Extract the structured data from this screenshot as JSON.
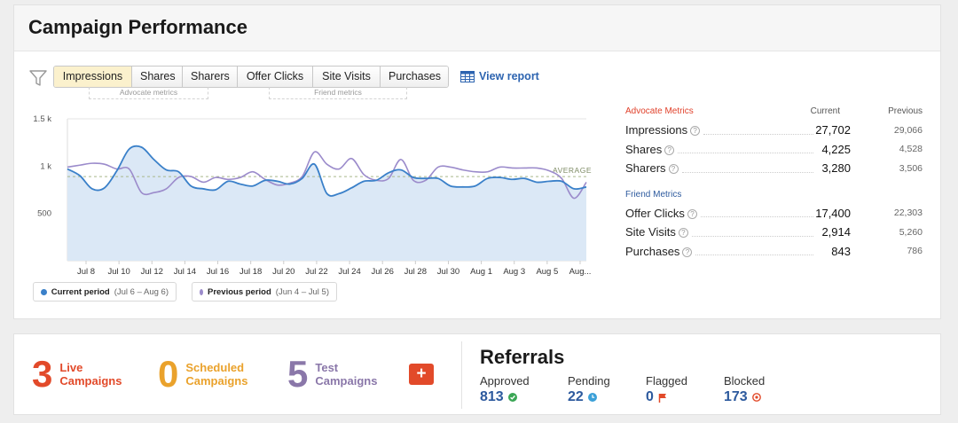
{
  "title": "Campaign Performance",
  "tabs": [
    {
      "label": "Impressions",
      "active": true
    },
    {
      "label": "Shares",
      "active": false
    },
    {
      "label": "Sharers",
      "active": false
    },
    {
      "label": "Offer Clicks",
      "active": false
    },
    {
      "label": "Site Visits",
      "active": false
    },
    {
      "label": "Purchases",
      "active": false
    }
  ],
  "tab_groups": {
    "advocate": "Advocate metrics",
    "friend": "Friend metrics"
  },
  "view_report": "View report",
  "chart_data": {
    "type": "area",
    "y_ticks": [
      "1.5 k",
      "1 k",
      "500"
    ],
    "ylim": [
      0,
      1500
    ],
    "x_ticks": [
      "Jul 8",
      "Jul 10",
      "Jul 12",
      "Jul 14",
      "Jul 16",
      "Jul 18",
      "Jul 20",
      "Jul 22",
      "Jul 24",
      "Jul 26",
      "Jul 28",
      "Jul 30",
      "Aug 1",
      "Aug 3",
      "Aug 5",
      "Aug..."
    ],
    "average_label": "AVERAGE",
    "average_value": 890,
    "series": [
      {
        "name": "Current period",
        "color": "#3a80c9",
        "fill": "#dbe8f6",
        "values": [
          970,
          900,
          760,
          770,
          950,
          1180,
          1200,
          1070,
          960,
          940,
          790,
          760,
          750,
          840,
          810,
          790,
          850,
          840,
          810,
          870,
          1020,
          710,
          710,
          770,
          840,
          850,
          930,
          960,
          880,
          870,
          870,
          790,
          780,
          790,
          870,
          880,
          860,
          870,
          830,
          840,
          840,
          760,
          780
        ]
      },
      {
        "name": "Previous period",
        "color": "#9b8bcb",
        "values": [
          990,
          1010,
          1030,
          1020,
          970,
          970,
          720,
          720,
          760,
          880,
          890,
          830,
          880,
          860,
          880,
          940,
          860,
          800,
          820,
          890,
          1150,
          1020,
          970,
          1080,
          910,
          850,
          870,
          1070,
          850,
          850,
          990,
          990,
          960,
          940,
          940,
          990,
          980,
          980,
          980,
          950,
          870,
          660,
          830
        ]
      }
    ]
  },
  "legend": {
    "current": {
      "label": "Current period",
      "range": "(Jul 6 – Aug 6)",
      "color": "#3a80c9"
    },
    "previous": {
      "label": "Previous period",
      "range": "(Jun 4 – Jul 5)",
      "color": "#9b8bcb"
    }
  },
  "metrics": {
    "advocate_title": "Advocate Metrics",
    "friend_title": "Friend Metrics",
    "col_current": "Current",
    "col_previous": "Previous",
    "advocate": [
      {
        "name": "Impressions",
        "current": "27,702",
        "previous": "29,066"
      },
      {
        "name": "Shares",
        "current": "4,225",
        "previous": "4,528"
      },
      {
        "name": "Sharers",
        "current": "3,280",
        "previous": "3,506"
      }
    ],
    "friend": [
      {
        "name": "Offer Clicks",
        "current": "17,400",
        "previous": "22,303"
      },
      {
        "name": "Site Visits",
        "current": "2,914",
        "previous": "5,260"
      },
      {
        "name": "Purchases",
        "current": "843",
        "previous": "786"
      }
    ]
  },
  "campaigns": {
    "live": {
      "count": "3",
      "line1": "Live",
      "line2": "Campaigns"
    },
    "scheduled": {
      "count": "0",
      "line1": "Scheduled",
      "line2": "Campaigns"
    },
    "test": {
      "count": "5",
      "line1": "Test",
      "line2": "Campaigns"
    },
    "add_symbol": "+"
  },
  "referrals": {
    "title": "Referrals",
    "approved": {
      "label": "Approved",
      "value": "813"
    },
    "pending": {
      "label": "Pending",
      "value": "22"
    },
    "flagged": {
      "label": "Flagged",
      "value": "0"
    },
    "blocked": {
      "label": "Blocked",
      "value": "173"
    }
  },
  "colors": {
    "accent_red": "#e24a2a",
    "accent_orange": "#eaa22c",
    "accent_purple": "#8a77a9",
    "link_blue": "#2d64b0",
    "number_blue": "#2d5a9e"
  }
}
